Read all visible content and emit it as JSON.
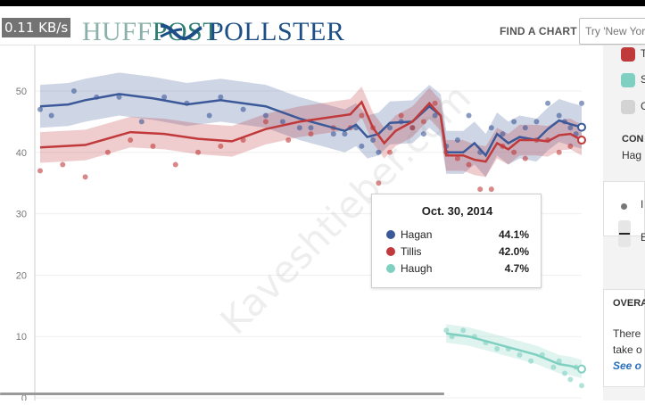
{
  "status_bar": {
    "speed": "0.11 KB/s"
  },
  "header": {
    "logo_huff_prefix": "HUFF",
    "logo_huff_suffix": "POST",
    "logo_pollster": "POLLSTER",
    "find_chart": "FIND A CHART",
    "search_placeholder": "Try 'New York"
  },
  "tooltip": {
    "date": "Oct. 30, 2014",
    "rows": [
      {
        "name": "Hagan",
        "value": "44.1%",
        "color": "#3b5998"
      },
      {
        "name": "Tillis",
        "value": "42.0%",
        "color": "#c0393b"
      },
      {
        "name": "Haugh",
        "value": "4.7%",
        "color": "#7fd0c0"
      }
    ]
  },
  "sidebar": {
    "legend_colors": [
      "#c0393b",
      "#7fd0c0",
      "#d3d3d3"
    ],
    "legend_text": [
      "T",
      "S",
      "C"
    ],
    "con_label": "CON",
    "con_value": "Hag",
    "overall_title": "OVERA",
    "overall_text_1": "There",
    "overall_text_2": "take o",
    "overall_link": "See o",
    "dot_label": "I",
    "line_label": "E"
  },
  "watermark": "Kaveshtieber.com",
  "chart_data": {
    "type": "line",
    "title": "",
    "xlabel": "",
    "ylabel": "",
    "ylim": [
      0,
      55
    ],
    "yticks": [
      0,
      10,
      20,
      30,
      40,
      50
    ],
    "series": [
      {
        "name": "Hagan",
        "color": "#3b5998",
        "band": 3.5,
        "trend": [
          [
            0,
            47.5
          ],
          [
            5,
            47.8
          ],
          [
            8,
            48.5
          ],
          [
            14,
            49.5
          ],
          [
            20,
            48.8
          ],
          [
            26,
            47.8
          ],
          [
            32,
            48.5
          ],
          [
            40,
            47.5
          ],
          [
            46,
            45.5
          ],
          [
            50,
            44.5
          ],
          [
            54,
            43.5
          ],
          [
            56,
            44.5
          ],
          [
            58,
            42.5
          ],
          [
            60,
            43.0
          ],
          [
            62,
            44.8
          ],
          [
            66,
            45.0
          ],
          [
            69,
            47.5
          ],
          [
            71,
            46.0
          ],
          [
            72,
            40.0
          ],
          [
            75,
            40.0
          ],
          [
            77,
            41.5
          ],
          [
            79,
            39.5
          ],
          [
            81,
            43.0
          ],
          [
            83,
            41.5
          ],
          [
            85,
            42.5
          ],
          [
            88,
            42.0
          ],
          [
            90,
            43.8
          ],
          [
            92,
            45.2
          ],
          [
            94,
            44.6
          ],
          [
            96,
            44.1
          ]
        ],
        "points": [
          [
            0,
            47
          ],
          [
            2,
            46
          ],
          [
            6,
            50
          ],
          [
            10,
            49
          ],
          [
            14,
            49
          ],
          [
            18,
            45
          ],
          [
            22,
            49
          ],
          [
            26,
            48
          ],
          [
            30,
            46
          ],
          [
            32,
            49
          ],
          [
            36,
            47
          ],
          [
            40,
            46
          ],
          [
            43,
            45
          ],
          [
            46,
            44
          ],
          [
            48,
            44
          ],
          [
            52,
            43
          ],
          [
            54,
            43
          ],
          [
            56,
            44
          ],
          [
            57,
            41
          ],
          [
            59,
            42
          ],
          [
            60,
            40
          ],
          [
            62,
            44
          ],
          [
            64,
            45
          ],
          [
            66,
            44
          ],
          [
            68,
            43
          ],
          [
            70,
            46
          ],
          [
            72,
            41
          ],
          [
            74,
            42
          ],
          [
            76,
            46
          ],
          [
            78,
            40
          ],
          [
            80,
            44
          ],
          [
            82,
            43
          ],
          [
            84,
            45
          ],
          [
            86,
            44
          ],
          [
            88,
            45
          ],
          [
            90,
            48
          ],
          [
            92,
            46
          ],
          [
            93,
            45
          ],
          [
            94,
            44
          ],
          [
            95,
            43
          ],
          [
            96,
            48
          ]
        ]
      },
      {
        "name": "Tillis",
        "color": "#c0393b",
        "band": 2.5,
        "trend": [
          [
            0,
            40.8
          ],
          [
            8,
            41.2
          ],
          [
            16,
            43.3
          ],
          [
            22,
            43.0
          ],
          [
            28,
            42.2
          ],
          [
            34,
            41.8
          ],
          [
            40,
            43.8
          ],
          [
            46,
            45.0
          ],
          [
            52,
            45.8
          ],
          [
            55,
            46.2
          ],
          [
            57,
            48.2
          ],
          [
            59,
            44.0
          ],
          [
            61,
            41.5
          ],
          [
            63,
            43.5
          ],
          [
            66,
            45.0
          ],
          [
            69,
            48.0
          ],
          [
            71,
            46.0
          ],
          [
            72,
            39.5
          ],
          [
            75,
            39.5
          ],
          [
            77,
            38.8
          ],
          [
            79,
            38.5
          ],
          [
            81,
            41.5
          ],
          [
            83,
            40.5
          ],
          [
            85,
            42.0
          ],
          [
            88,
            42.0
          ],
          [
            90,
            41.8
          ],
          [
            92,
            42.8
          ],
          [
            94,
            43.0
          ],
          [
            96,
            42.0
          ]
        ],
        "points": [
          [
            0,
            37
          ],
          [
            4,
            38
          ],
          [
            8,
            36
          ],
          [
            12,
            40
          ],
          [
            16,
            42
          ],
          [
            20,
            41
          ],
          [
            24,
            38
          ],
          [
            28,
            40
          ],
          [
            32,
            41
          ],
          [
            36,
            42
          ],
          [
            40,
            45
          ],
          [
            44,
            42
          ],
          [
            48,
            43
          ],
          [
            52,
            44
          ],
          [
            55,
            44
          ],
          [
            57,
            46
          ],
          [
            59,
            44
          ],
          [
            60,
            35
          ],
          [
            62,
            40
          ],
          [
            64,
            46
          ],
          [
            66,
            44
          ],
          [
            68,
            45
          ],
          [
            70,
            48
          ],
          [
            72,
            40
          ],
          [
            74,
            39
          ],
          [
            76,
            38
          ],
          [
            78,
            34
          ],
          [
            80,
            34
          ],
          [
            82,
            41
          ],
          [
            84,
            40
          ],
          [
            86,
            39
          ],
          [
            88,
            42
          ],
          [
            90,
            42
          ],
          [
            92,
            40
          ],
          [
            94,
            41
          ],
          [
            96,
            42
          ]
        ]
      },
      {
        "name": "Haugh",
        "color": "#7fd0c0",
        "band": 1.5,
        "trend": [
          [
            72,
            10.5
          ],
          [
            76,
            10.0
          ],
          [
            80,
            9.0
          ],
          [
            84,
            8.0
          ],
          [
            88,
            7.0
          ],
          [
            92,
            5.5
          ],
          [
            94,
            5.2
          ],
          [
            96,
            4.7
          ]
        ],
        "points": [
          [
            72,
            11
          ],
          [
            73,
            10
          ],
          [
            75,
            11
          ],
          [
            77,
            10
          ],
          [
            79,
            9
          ],
          [
            81,
            8
          ],
          [
            83,
            8
          ],
          [
            85,
            7
          ],
          [
            87,
            6
          ],
          [
            89,
            7
          ],
          [
            91,
            5
          ],
          [
            92,
            6
          ],
          [
            93,
            4
          ],
          [
            94,
            3
          ],
          [
            95,
            5
          ],
          [
            96,
            2
          ]
        ]
      }
    ]
  }
}
